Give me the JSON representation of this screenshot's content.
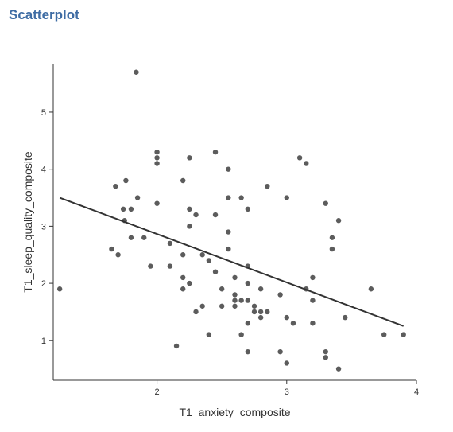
{
  "page": {
    "title": "Scatterplot"
  },
  "chart_data": {
    "type": "scatter",
    "xlabel": "T1_anxiety_composite",
    "ylabel": "T1_sleep_quality_composite",
    "xlim": [
      1.2,
      4.0
    ],
    "ylim": [
      0.3,
      5.85
    ],
    "xticks": [
      2,
      3,
      4
    ],
    "yticks": [
      1,
      2,
      3,
      4,
      5
    ],
    "grid": false,
    "legend": "none",
    "point_color": "#404040",
    "line_color": "#333333",
    "series": [
      {
        "points": [
          [
            1.25,
            1.9
          ],
          [
            1.65,
            2.6
          ],
          [
            1.68,
            3.7
          ],
          [
            1.7,
            2.5
          ],
          [
            1.74,
            3.3
          ],
          [
            1.75,
            3.1
          ],
          [
            1.76,
            3.8
          ],
          [
            1.8,
            3.3
          ],
          [
            1.8,
            2.8
          ],
          [
            1.84,
            5.7
          ],
          [
            1.85,
            3.5
          ],
          [
            1.9,
            2.8
          ],
          [
            1.95,
            2.3
          ],
          [
            2.0,
            4.3
          ],
          [
            2.0,
            4.2
          ],
          [
            2.0,
            4.1
          ],
          [
            2.0,
            3.4
          ],
          [
            2.1,
            2.7
          ],
          [
            2.1,
            2.3
          ],
          [
            2.15,
            0.9
          ],
          [
            2.2,
            3.8
          ],
          [
            2.2,
            2.5
          ],
          [
            2.2,
            2.1
          ],
          [
            2.2,
            1.9
          ],
          [
            2.25,
            4.2
          ],
          [
            2.25,
            3.3
          ],
          [
            2.25,
            3.0
          ],
          [
            2.25,
            2.0
          ],
          [
            2.3,
            3.2
          ],
          [
            2.3,
            1.5
          ],
          [
            2.35,
            2.5
          ],
          [
            2.35,
            1.6
          ],
          [
            2.4,
            2.4
          ],
          [
            2.4,
            1.1
          ],
          [
            2.45,
            4.3
          ],
          [
            2.45,
            3.2
          ],
          [
            2.45,
            2.2
          ],
          [
            2.5,
            1.9
          ],
          [
            2.5,
            1.6
          ],
          [
            2.55,
            4.0
          ],
          [
            2.55,
            3.5
          ],
          [
            2.55,
            2.9
          ],
          [
            2.55,
            2.6
          ],
          [
            2.6,
            2.1
          ],
          [
            2.6,
            1.8
          ],
          [
            2.6,
            1.7
          ],
          [
            2.6,
            1.6
          ],
          [
            2.65,
            3.5
          ],
          [
            2.65,
            1.7
          ],
          [
            2.65,
            1.1
          ],
          [
            2.7,
            3.3
          ],
          [
            2.7,
            2.3
          ],
          [
            2.7,
            2.0
          ],
          [
            2.7,
            1.7
          ],
          [
            2.7,
            1.3
          ],
          [
            2.7,
            0.8
          ],
          [
            2.75,
            1.6
          ],
          [
            2.75,
            1.5
          ],
          [
            2.8,
            1.9
          ],
          [
            2.8,
            1.5
          ],
          [
            2.8,
            1.4
          ],
          [
            2.85,
            3.7
          ],
          [
            2.85,
            1.5
          ],
          [
            2.95,
            1.8
          ],
          [
            2.95,
            0.8
          ],
          [
            3.0,
            3.5
          ],
          [
            3.0,
            1.4
          ],
          [
            3.0,
            0.6
          ],
          [
            3.05,
            1.3
          ],
          [
            3.1,
            4.2
          ],
          [
            3.15,
            4.1
          ],
          [
            3.15,
            1.9
          ],
          [
            3.2,
            2.1
          ],
          [
            3.2,
            1.7
          ],
          [
            3.2,
            1.3
          ],
          [
            3.3,
            3.4
          ],
          [
            3.3,
            0.8
          ],
          [
            3.3,
            0.7
          ],
          [
            3.35,
            2.8
          ],
          [
            3.35,
            2.6
          ],
          [
            3.4,
            3.1
          ],
          [
            3.4,
            0.5
          ],
          [
            3.45,
            1.4
          ],
          [
            3.65,
            1.9
          ],
          [
            3.75,
            1.1
          ],
          [
            3.9,
            1.1
          ]
        ]
      }
    ],
    "trend_line": {
      "x": [
        1.25,
        3.9
      ],
      "y": [
        3.5,
        1.25
      ]
    }
  }
}
